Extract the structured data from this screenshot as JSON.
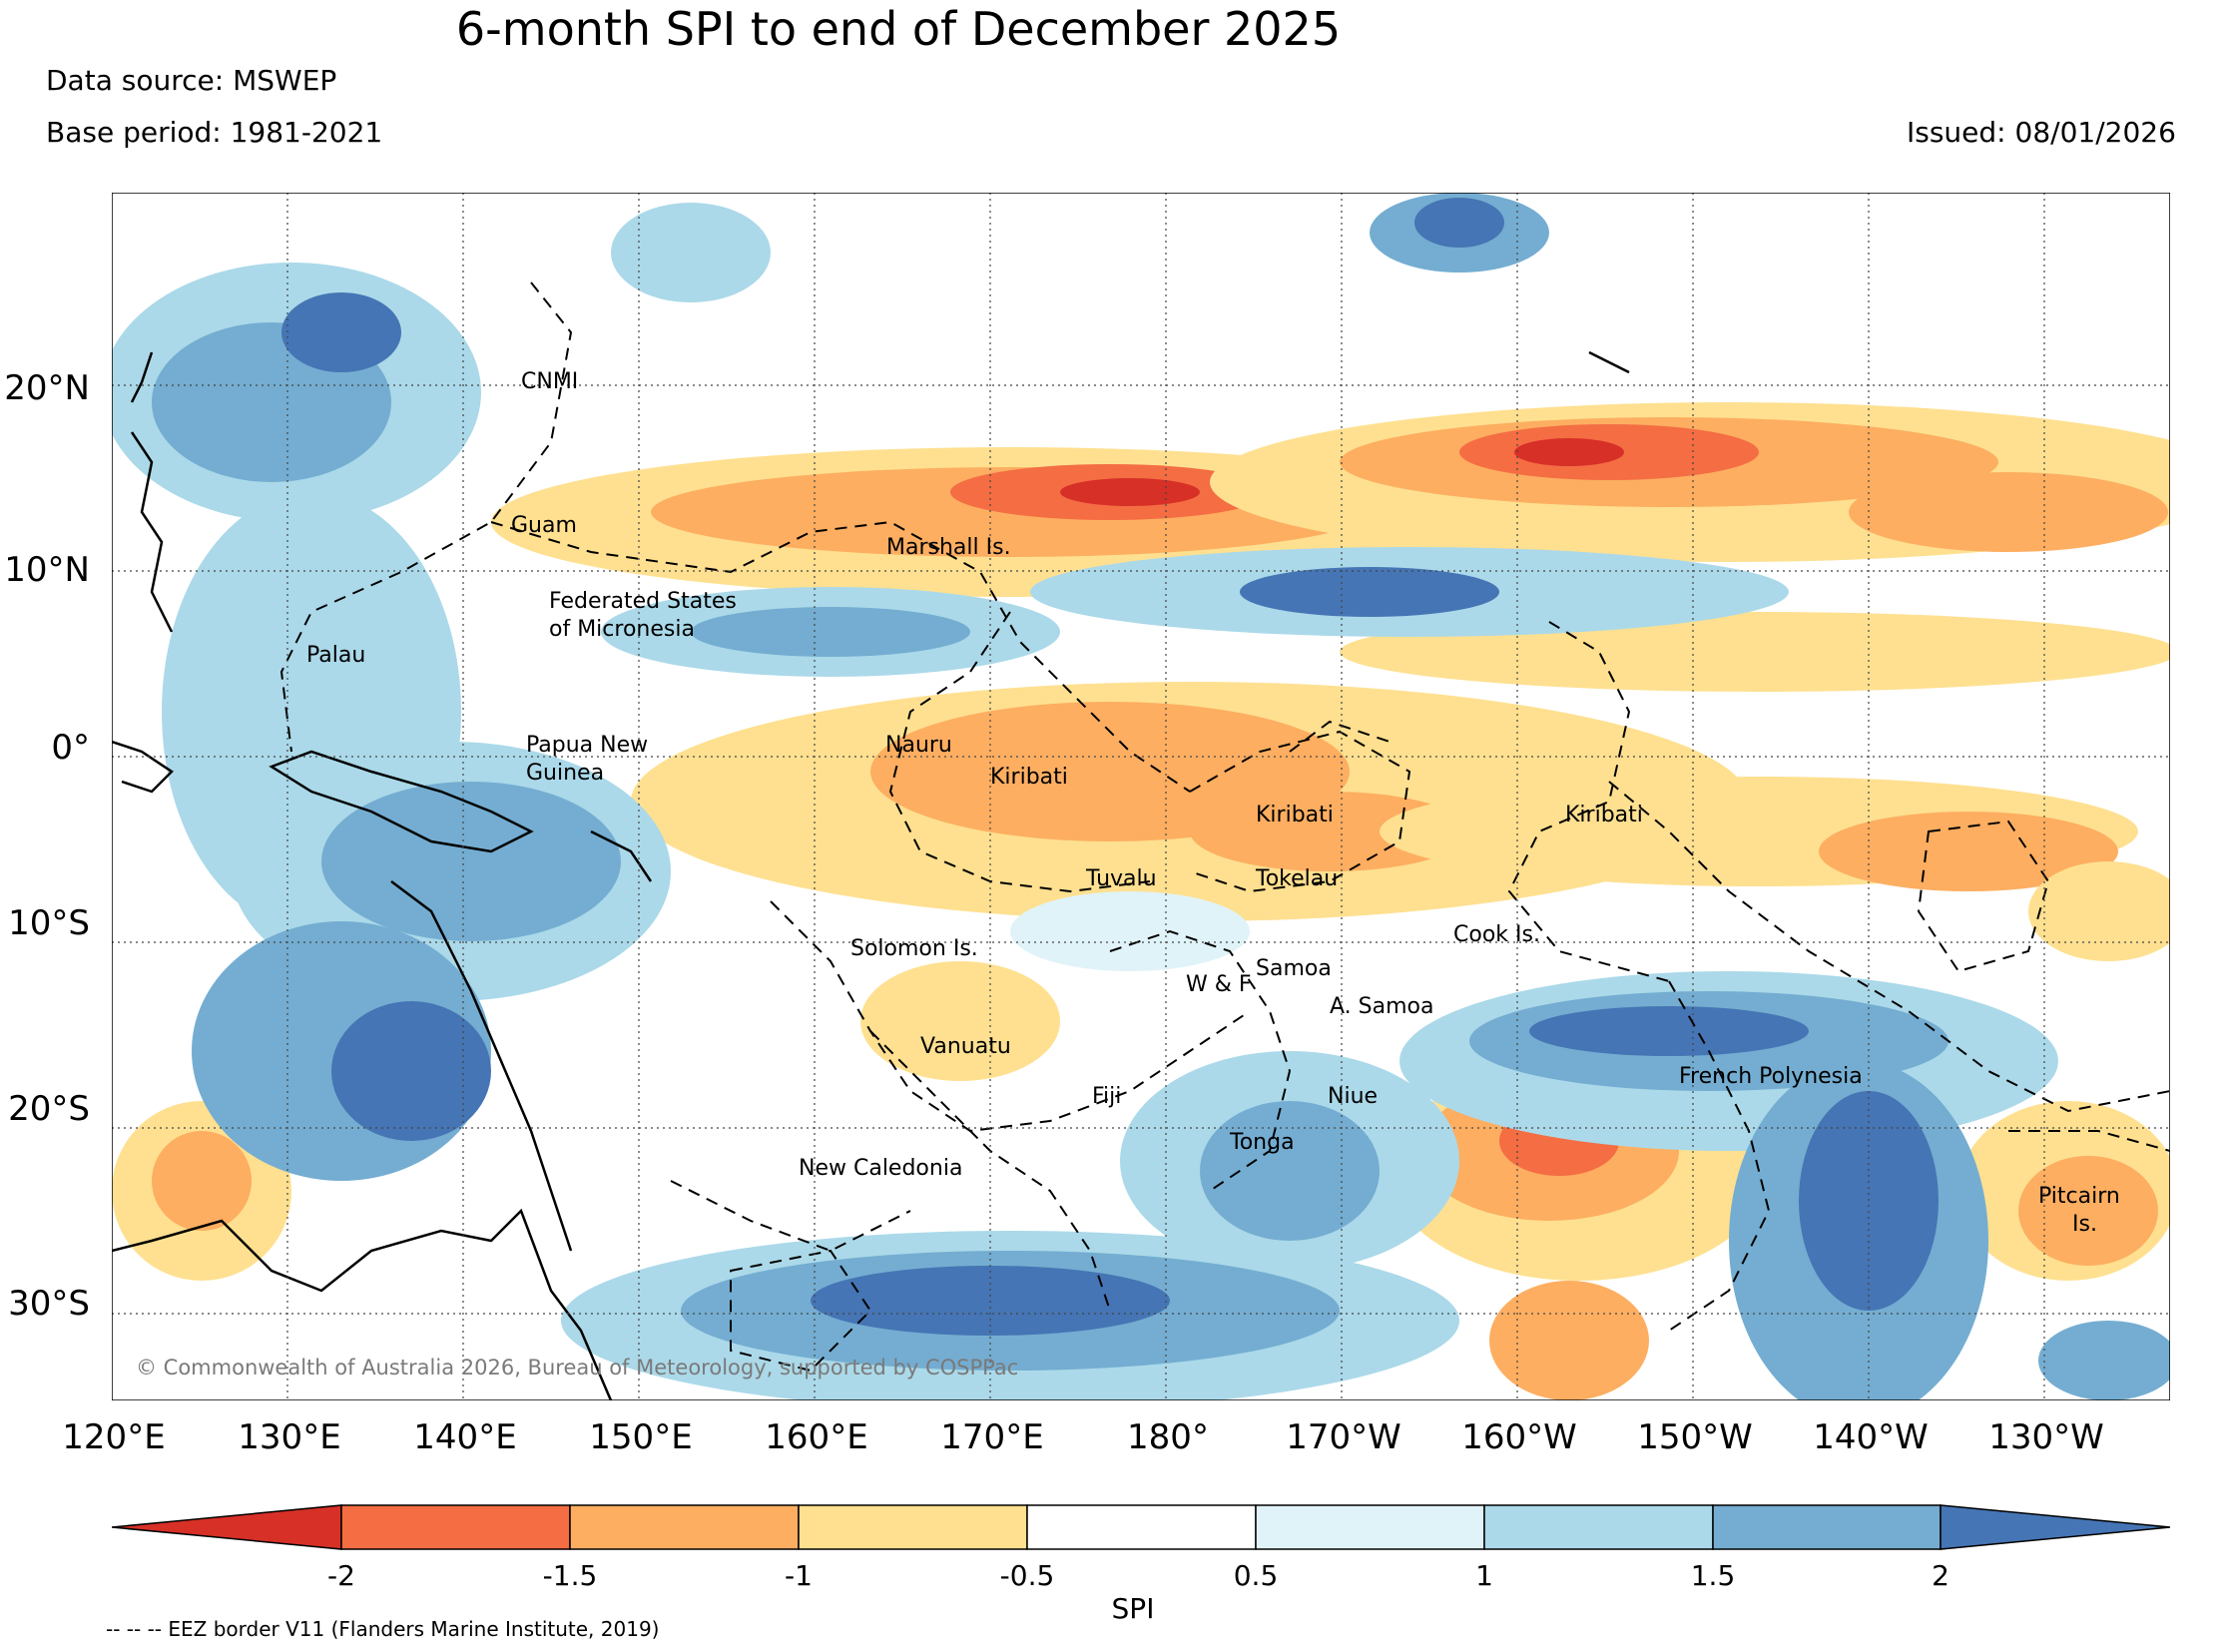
{
  "title": "6-month SPI to end of December 2025",
  "data_source": "Data source: MSWEP",
  "base_period": "Base period: 1981-2021",
  "issued": "Issued: 08/01/2026",
  "lat_labels": [
    "20°N",
    "10°N",
    "0°",
    "10°S",
    "20°S",
    "30°S"
  ],
  "lon_labels": [
    "120°E",
    "130°E",
    "140°E",
    "150°E",
    "160°E",
    "170°E",
    "180°",
    "170°W",
    "160°W",
    "150°W",
    "140°W",
    "130°W"
  ],
  "regions": [
    "CNMI",
    "Guam",
    "Marshall Is.",
    "Federated States",
    "of Micronesia",
    "Palau",
    "Papua New",
    "Guinea",
    "Nauru",
    "Kiribati",
    "Kiribati",
    "Kiribati",
    "Tuvalu",
    "Tokelau",
    "Cook Is.",
    "Solomon Is.",
    "Samoa",
    "W & F",
    "A. Samoa",
    "Vanuatu",
    "Fiji",
    "Niue",
    "Tonga",
    "French Polynesia",
    "New Caledonia",
    "Pitcairn",
    "Is."
  ],
  "copyright": "© Commonwealth of Australia 2026, Bureau of Meteorology, supported by COSPPac",
  "colorbar": {
    "ticks": [
      "-2",
      "-1.5",
      "-1",
      "-0.5",
      "0.5",
      "1",
      "1.5",
      "2"
    ],
    "label": "SPI",
    "colors": [
      "#d73027",
      "#f46d43",
      "#fdae61",
      "#fee090",
      "#ffffff",
      "#e0f3f8",
      "#abd9e9",
      "#74add1",
      "#4575b4"
    ]
  },
  "eez_note": "-- -- -- EEZ border V11 (Flanders Marine Institute, 2019)"
}
